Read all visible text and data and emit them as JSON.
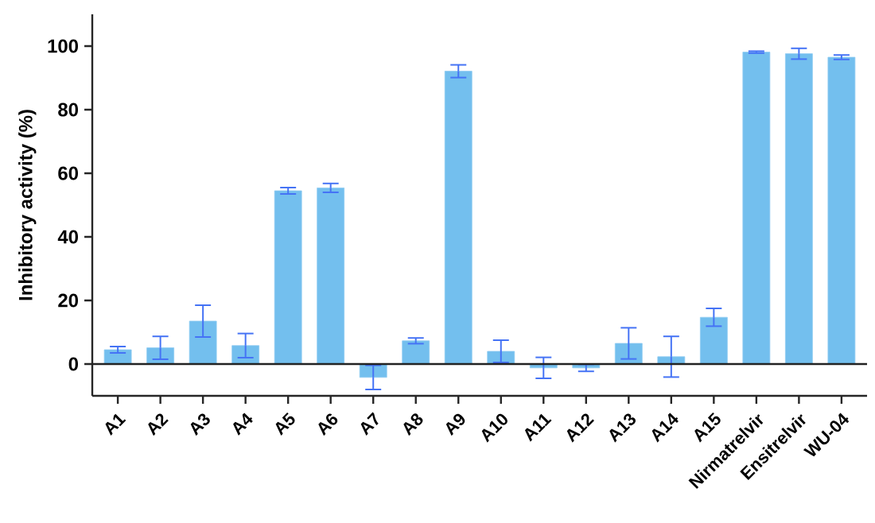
{
  "chart_data": {
    "type": "bar",
    "ylabel": "Inhibitory activity (%)",
    "categories": [
      "A1",
      "A2",
      "A3",
      "A4",
      "A5",
      "A6",
      "A7",
      "A8",
      "A9",
      "A10",
      "A11",
      "A12",
      "A13",
      "A14",
      "A15",
      "Nirmatrelvir",
      "Ensitrelvir",
      "WU-04"
    ],
    "values": [
      4.5,
      5.1,
      13.5,
      5.8,
      54.5,
      55.4,
      -4.2,
      7.3,
      92.1,
      4.0,
      -1.2,
      -1.2,
      6.5,
      2.3,
      14.7,
      98.1,
      97.6,
      96.5
    ],
    "errors": [
      1,
      3.6,
      5,
      3.8,
      1,
      1.4,
      3.8,
      0.9,
      2,
      3.5,
      3.3,
      1.1,
      4.9,
      6.4,
      2.8,
      0.3,
      1.7,
      0.7
    ],
    "color": "#73bfee",
    "ylim": [
      -10,
      110
    ],
    "yticks": [
      0,
      20,
      40,
      60,
      80,
      100
    ],
    "ref_lines": [
      {
        "axis": "y",
        "value": 0,
        "color": "#222222"
      }
    ]
  }
}
